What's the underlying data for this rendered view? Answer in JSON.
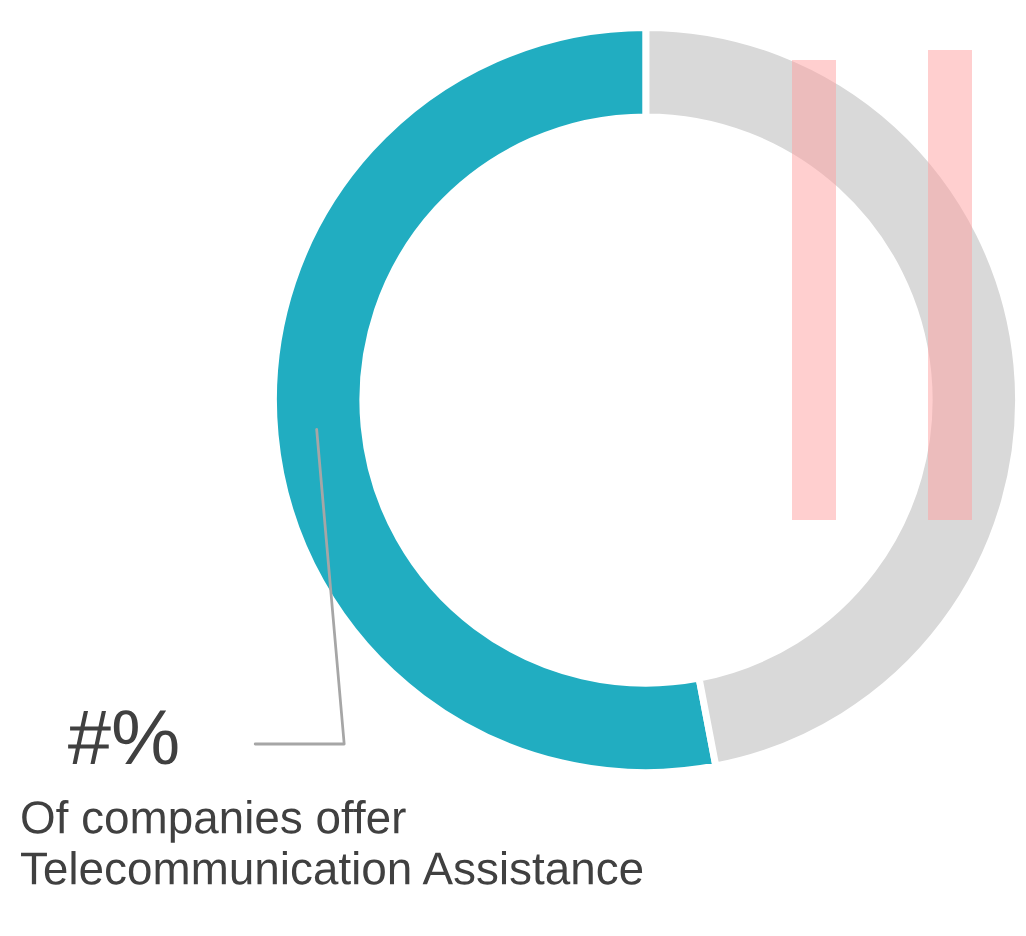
{
  "chart_data": {
    "type": "donut",
    "categories": [
      null,
      null
    ],
    "values": [
      53,
      47
    ],
    "colors": [
      "#21adc1",
      "#d9d9d9"
    ],
    "annotations": [
      "#%",
      "Of companies offer\nTelecommunication Assistance"
    ]
  }
}
